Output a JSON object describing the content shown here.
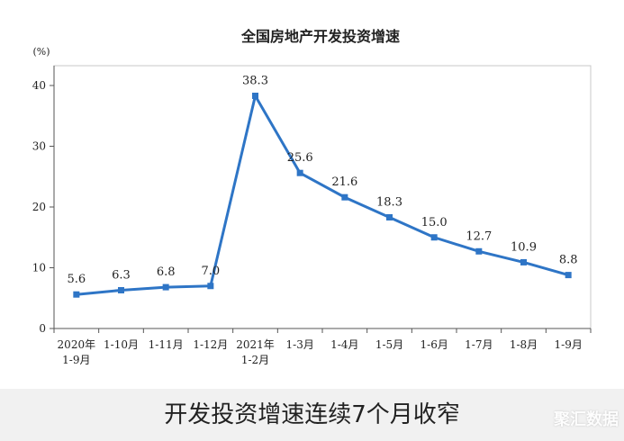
{
  "chart_data": {
    "type": "line",
    "title": "全国房地产开发投资增速",
    "ylabel": "(%)",
    "ylim": [
      0,
      40
    ],
    "yticks": [
      "0",
      "10",
      "20",
      "30",
      "40"
    ],
    "categories": [
      [
        "2020年",
        "1-9月"
      ],
      [
        "1-10月"
      ],
      [
        "1-11月"
      ],
      [
        "1-12月"
      ],
      [
        "2021年",
        "1-2月"
      ],
      [
        "1-3月"
      ],
      [
        "1-4月"
      ],
      [
        "1-5月"
      ],
      [
        "1-6月"
      ],
      [
        "1-7月"
      ],
      [
        "1-8月"
      ],
      [
        "1-9月"
      ]
    ],
    "series": [
      {
        "values": [
          5.6,
          6.3,
          6.8,
          7.0,
          38.3,
          25.6,
          21.6,
          18.3,
          15.0,
          12.7,
          10.9,
          8.8
        ],
        "labels": [
          "5.6",
          "6.3",
          "6.8",
          "7.0",
          "38.3",
          "25.6",
          "21.6",
          "18.3",
          "15.0",
          "12.7",
          "10.9",
          "8.8"
        ]
      }
    ],
    "line_color": "#2e75c6",
    "grid": false
  },
  "caption": "开发投资增速连续7个月收窄",
  "watermark": "聚汇数据"
}
